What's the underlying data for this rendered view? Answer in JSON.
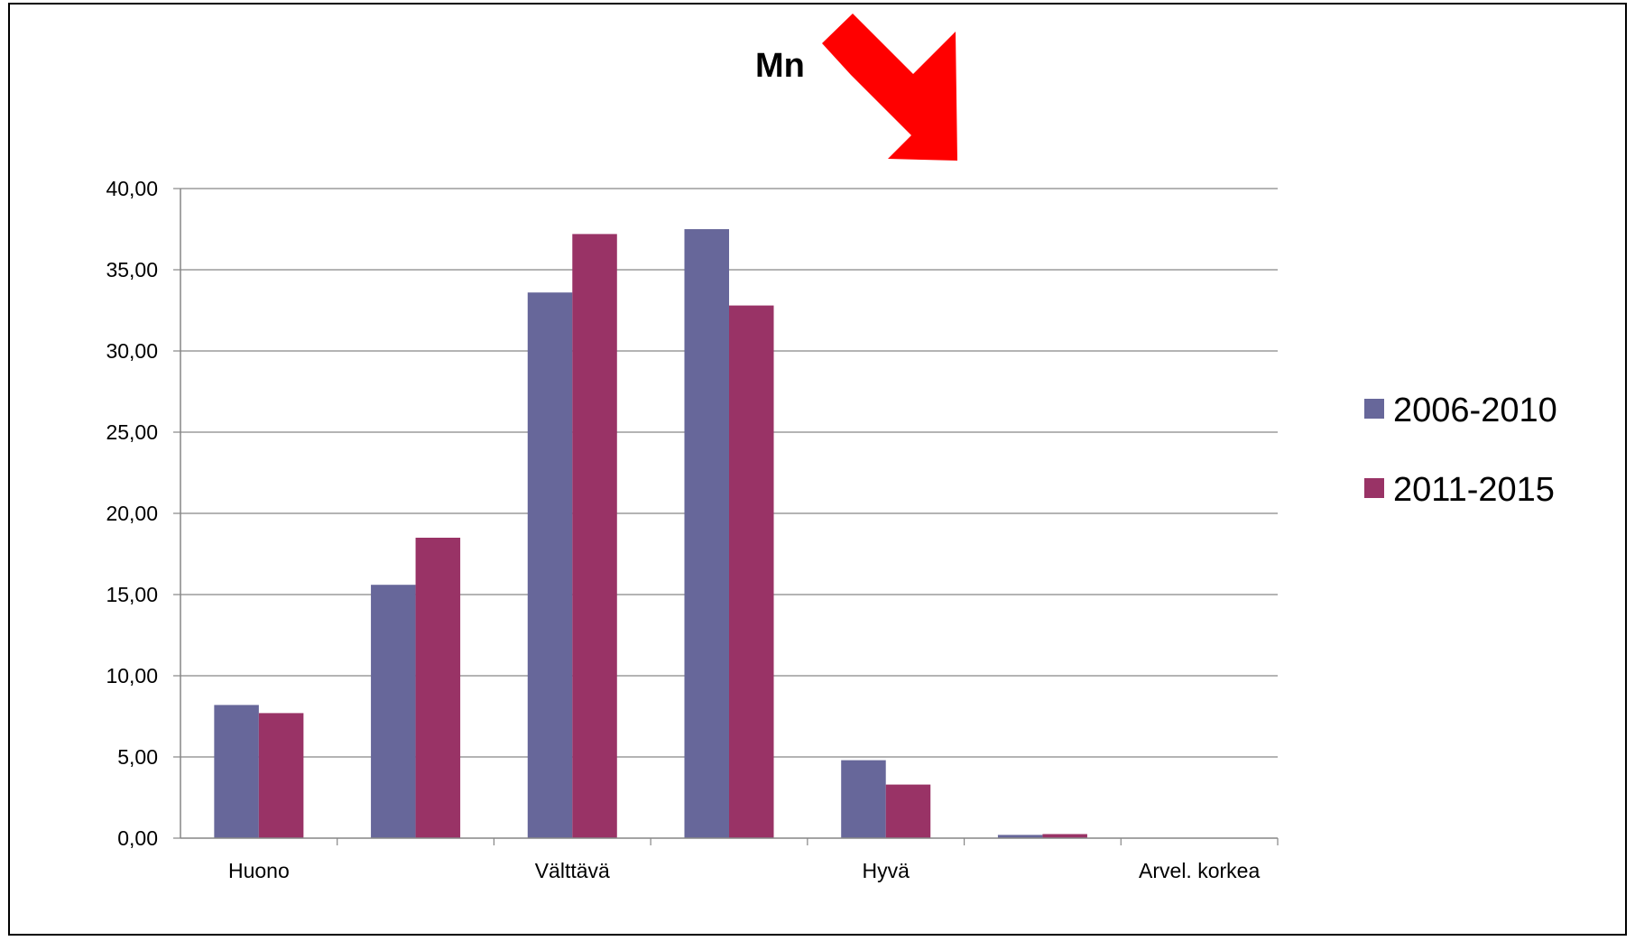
{
  "chart_data": {
    "type": "bar",
    "title": "",
    "annotation": "Mn",
    "xlabel": "",
    "ylabel": "",
    "ylim": [
      0,
      40
    ],
    "ytick_labels": [
      "0,00",
      "5,00",
      "10,00",
      "15,00",
      "20,00",
      "25,00",
      "30,00",
      "35,00",
      "40,00"
    ],
    "yticks": [
      0,
      5,
      10,
      15,
      20,
      25,
      30,
      35,
      40
    ],
    "categories": [
      "Huono",
      "",
      "Välttävä",
      "",
      "Hyvä",
      "",
      "Arvel. korkea"
    ],
    "series": [
      {
        "name": "2006-2010",
        "color": "#67679a",
        "values": [
          8.2,
          15.6,
          33.6,
          37.5,
          4.8,
          0.2,
          0.02
        ]
      },
      {
        "name": "2011-2015",
        "color": "#993366",
        "values": [
          7.7,
          18.5,
          37.2,
          32.8,
          3.3,
          0.25,
          0.02
        ]
      }
    ],
    "grid": true,
    "legend_position": "right",
    "arrow_color": "#ff0000"
  }
}
